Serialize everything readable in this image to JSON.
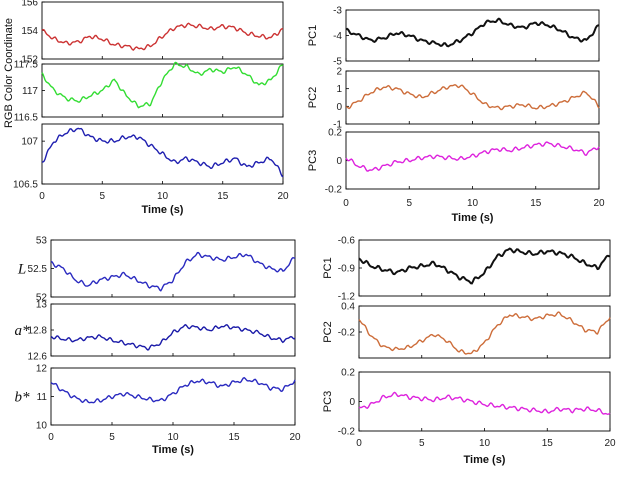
{
  "chart_data": [
    {
      "type": "line",
      "panel": "top-left",
      "ylabel": "RGB Color Coordinate",
      "xlabel": "Time (s)",
      "xlim": [
        0,
        20
      ],
      "xticks": [
        "0",
        "5",
        "10",
        "15",
        "20"
      ],
      "subplots": [
        {
          "name": "",
          "color": "#cc3333",
          "ylim": [
            152,
            156
          ],
          "yticks": [
            "152",
            "154",
            "156"
          ],
          "x": [
            0,
            1,
            2,
            3,
            4,
            5,
            6,
            7,
            8,
            9,
            10,
            11,
            12,
            13,
            14,
            15,
            16,
            17,
            18,
            19,
            20
          ],
          "values": [
            154.0,
            153.4,
            153.1,
            153.2,
            153.6,
            153.4,
            153.0,
            152.9,
            152.7,
            152.9,
            153.6,
            154.2,
            154.4,
            154.3,
            154.1,
            154.3,
            154.2,
            153.8,
            153.6,
            153.5,
            154.1
          ]
        },
        {
          "name": "",
          "color": "#33dd33",
          "ylim": [
            116.5,
            117.5
          ],
          "yticks": [
            "116.5",
            "117",
            "117.5"
          ],
          "x": [
            0,
            1,
            2,
            3,
            4,
            5,
            6,
            7,
            8,
            9,
            10,
            11,
            12,
            13,
            14,
            15,
            16,
            17,
            18,
            19,
            20
          ],
          "values": [
            117.3,
            117.0,
            116.85,
            116.8,
            116.9,
            117.0,
            117.2,
            116.9,
            116.7,
            116.75,
            117.2,
            117.5,
            117.45,
            117.3,
            117.4,
            117.35,
            117.45,
            117.3,
            117.1,
            117.2,
            117.5
          ]
        },
        {
          "name": "",
          "color": "#1f1fb0",
          "ylim": [
            106.5,
            107.2
          ],
          "yticks": [
            "106.5",
            "107"
          ],
          "x": [
            0,
            1,
            2,
            3,
            4,
            5,
            6,
            7,
            8,
            9,
            10,
            11,
            12,
            13,
            14,
            15,
            16,
            17,
            18,
            19,
            20
          ],
          "values": [
            106.75,
            107.0,
            107.1,
            107.15,
            107.05,
            107.0,
            107.0,
            107.05,
            107.05,
            106.95,
            106.85,
            106.75,
            106.8,
            106.75,
            106.7,
            106.75,
            106.8,
            106.7,
            106.75,
            106.8,
            106.6
          ]
        }
      ]
    },
    {
      "type": "line",
      "panel": "top-right",
      "xlabel": "Time (s)",
      "xlim": [
        0,
        20
      ],
      "xticks": [
        "0",
        "5",
        "10",
        "15",
        "20"
      ],
      "subplots": [
        {
          "name": "PC1",
          "color": "#111111",
          "ylim": [
            -5,
            -3
          ],
          "yticks": [
            "-3",
            "-4",
            "-5"
          ],
          "x": [
            0,
            1,
            2,
            3,
            4,
            5,
            6,
            7,
            8,
            9,
            10,
            11,
            12,
            13,
            14,
            15,
            16,
            17,
            18,
            19,
            20
          ],
          "values": [
            -3.8,
            -4.0,
            -4.2,
            -4.1,
            -3.9,
            -4.0,
            -4.2,
            -4.3,
            -4.4,
            -4.2,
            -3.9,
            -3.5,
            -3.4,
            -3.6,
            -3.7,
            -3.5,
            -3.6,
            -3.8,
            -4.1,
            -4.2,
            -3.6
          ]
        },
        {
          "name": "PC2",
          "color": "#cd6d3a",
          "ylim": [
            -1,
            2
          ],
          "yticks": [
            "2",
            "1",
            "0",
            "-1"
          ],
          "x": [
            0,
            1,
            2,
            3,
            4,
            5,
            6,
            7,
            8,
            9,
            10,
            11,
            12,
            13,
            14,
            15,
            16,
            17,
            18,
            19,
            20
          ],
          "values": [
            -0.1,
            0.3,
            0.8,
            1.1,
            1.0,
            0.7,
            0.5,
            0.8,
            1.1,
            1.2,
            0.7,
            0.1,
            -0.1,
            0.0,
            0.1,
            -0.1,
            0.0,
            0.2,
            0.5,
            0.8,
            0.0
          ]
        },
        {
          "name": "PC3",
          "color": "#dd22dd",
          "ylim": [
            -0.2,
            0.2
          ],
          "yticks": [
            "0.2",
            "0",
            "-0.2"
          ],
          "x": [
            0,
            1,
            2,
            3,
            4,
            5,
            6,
            7,
            8,
            9,
            10,
            11,
            12,
            13,
            14,
            15,
            16,
            17,
            18,
            19,
            20
          ],
          "values": [
            0.02,
            -0.04,
            -0.07,
            -0.04,
            -0.01,
            0.0,
            0.02,
            0.03,
            0.02,
            0.01,
            0.03,
            0.06,
            0.08,
            0.07,
            0.09,
            0.11,
            0.12,
            0.1,
            0.08,
            0.05,
            0.1
          ]
        }
      ]
    },
    {
      "type": "line",
      "panel": "bottom-left",
      "xlabel": "Time (s)",
      "xlim": [
        0,
        20
      ],
      "xticks": [
        "0",
        "5",
        "10",
        "15",
        "20"
      ],
      "subplots": [
        {
          "name": "L",
          "color": "#2a2ac0",
          "ylim": [
            52,
            53
          ],
          "yticks": [
            "53",
            "52.5",
            "52"
          ],
          "x": [
            0,
            1,
            2,
            3,
            4,
            5,
            6,
            7,
            8,
            9,
            10,
            11,
            12,
            13,
            14,
            15,
            16,
            17,
            18,
            19,
            20
          ],
          "values": [
            52.6,
            52.5,
            52.3,
            52.2,
            52.3,
            52.35,
            52.4,
            52.3,
            52.2,
            52.15,
            52.3,
            52.6,
            52.75,
            52.7,
            52.65,
            52.7,
            52.75,
            52.6,
            52.5,
            52.45,
            52.7
          ]
        },
        {
          "name": "a*",
          "color": "#1a1aa8",
          "ylim": [
            12.6,
            13
          ],
          "yticks": [
            "13",
            "12.8",
            "12.6"
          ],
          "x": [
            0,
            1,
            2,
            3,
            4,
            5,
            6,
            7,
            8,
            9,
            10,
            11,
            12,
            13,
            14,
            15,
            16,
            17,
            18,
            19,
            20
          ],
          "values": [
            12.75,
            12.73,
            12.72,
            12.74,
            12.75,
            12.72,
            12.7,
            12.68,
            12.66,
            12.7,
            12.78,
            12.83,
            12.82,
            12.8,
            12.83,
            12.82,
            12.8,
            12.78,
            12.74,
            12.72,
            12.75
          ]
        },
        {
          "name": "b*",
          "color": "#2a2ac0",
          "ylim": [
            10,
            12
          ],
          "yticks": [
            "12",
            "11",
            "10"
          ],
          "x": [
            0,
            1,
            2,
            3,
            4,
            5,
            6,
            7,
            8,
            9,
            10,
            11,
            12,
            13,
            14,
            15,
            16,
            17,
            18,
            19,
            20
          ],
          "values": [
            11.5,
            11.2,
            10.95,
            10.8,
            10.85,
            11.0,
            11.1,
            11.0,
            10.9,
            10.85,
            11.1,
            11.4,
            11.55,
            11.5,
            11.35,
            11.5,
            11.6,
            11.5,
            11.3,
            11.25,
            11.55
          ]
        }
      ]
    },
    {
      "type": "line",
      "panel": "bottom-right",
      "xlabel": "Time (s)",
      "xlim": [
        0,
        20
      ],
      "xticks": [
        "0",
        "5",
        "10",
        "15",
        "20"
      ],
      "subplots": [
        {
          "name": "PC1",
          "color": "#111111",
          "ylim": [
            -1.2,
            -0.6
          ],
          "yticks": [
            "-0.6",
            "-0.9",
            "-1.2"
          ],
          "x": [
            0,
            1,
            2,
            3,
            4,
            5,
            6,
            7,
            8,
            9,
            10,
            11,
            12,
            13,
            14,
            15,
            16,
            17,
            18,
            19,
            20
          ],
          "values": [
            -0.8,
            -0.88,
            -0.92,
            -0.95,
            -0.9,
            -0.88,
            -0.85,
            -0.92,
            -1.0,
            -1.05,
            -0.95,
            -0.78,
            -0.7,
            -0.73,
            -0.75,
            -0.72,
            -0.74,
            -0.78,
            -0.85,
            -0.9,
            -0.75
          ]
        },
        {
          "name": "PC2",
          "color": "#cd6d3a",
          "ylim": [
            -0.8,
            0.4
          ],
          "yticks": [
            "0.4",
            "-0.2"
          ],
          "x": [
            0,
            1,
            2,
            3,
            4,
            5,
            6,
            7,
            8,
            9,
            10,
            11,
            12,
            13,
            14,
            15,
            16,
            17,
            18,
            19,
            20
          ],
          "values": [
            0.1,
            -0.3,
            -0.55,
            -0.6,
            -0.55,
            -0.4,
            -0.25,
            -0.4,
            -0.65,
            -0.7,
            -0.45,
            -0.05,
            0.2,
            0.15,
            0.1,
            0.18,
            0.22,
            0.05,
            -0.15,
            -0.2,
            0.15
          ]
        },
        {
          "name": "PC3",
          "color": "#dd22dd",
          "ylim": [
            -0.2,
            0.2
          ],
          "yticks": [
            "0.2",
            "0",
            "-0.2"
          ],
          "x": [
            0,
            1,
            2,
            3,
            4,
            5,
            6,
            7,
            8,
            9,
            10,
            11,
            12,
            13,
            14,
            15,
            16,
            17,
            18,
            19,
            20
          ],
          "values": [
            -0.05,
            -0.02,
            0.03,
            0.05,
            0.03,
            0.02,
            0.01,
            0.03,
            0.02,
            0.0,
            -0.02,
            -0.03,
            -0.04,
            -0.05,
            -0.06,
            -0.07,
            -0.05,
            -0.06,
            -0.05,
            -0.06,
            -0.09
          ]
        }
      ]
    }
  ]
}
